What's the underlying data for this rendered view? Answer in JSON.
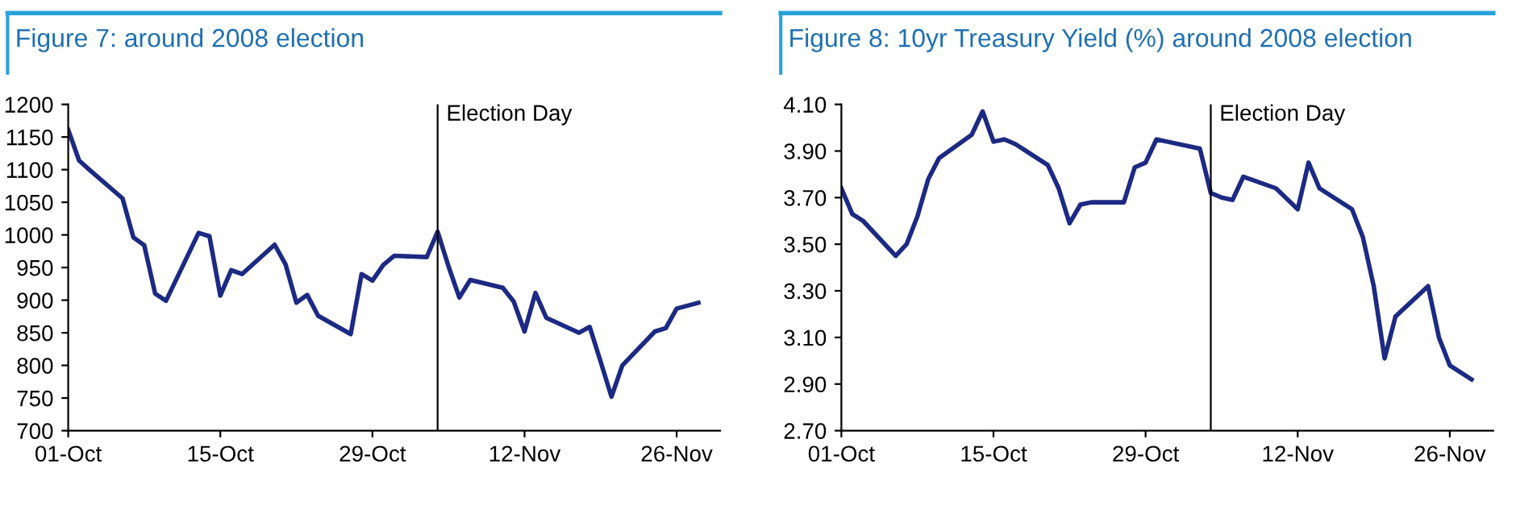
{
  "chart_data": [
    {
      "type": "line",
      "title": "Figure 7: around 2008 election",
      "x": [
        "2008-10-01",
        "2008-10-02",
        "2008-10-03",
        "2008-10-06",
        "2008-10-07",
        "2008-10-08",
        "2008-10-09",
        "2008-10-10",
        "2008-10-13",
        "2008-10-14",
        "2008-10-15",
        "2008-10-16",
        "2008-10-17",
        "2008-10-20",
        "2008-10-21",
        "2008-10-22",
        "2008-10-23",
        "2008-10-24",
        "2008-10-27",
        "2008-10-28",
        "2008-10-29",
        "2008-10-30",
        "2008-10-31",
        "2008-11-03",
        "2008-11-04",
        "2008-11-05",
        "2008-11-06",
        "2008-11-07",
        "2008-11-10",
        "2008-11-11",
        "2008-11-12",
        "2008-11-13",
        "2008-11-14",
        "2008-11-17",
        "2008-11-18",
        "2008-11-19",
        "2008-11-20",
        "2008-11-21",
        "2008-11-24",
        "2008-11-25",
        "2008-11-26",
        "2008-11-28"
      ],
      "series": [
        {
          "color": "#1c2a83",
          "values": [
            1161,
            1114,
            1099,
            1056,
            996,
            984,
            910,
            899,
            1003,
            998,
            907,
            946,
            940,
            985,
            955,
            896,
            908,
            876,
            848,
            940,
            930,
            954,
            968,
            966,
            1005,
            952,
            904,
            931,
            919,
            898,
            852,
            911,
            873,
            850,
            859,
            806,
            752,
            800,
            852,
            857,
            887,
            896
          ]
        }
      ],
      "xlim": [
        "2008-10-01",
        "2008-11-30"
      ],
      "xticks": [
        {
          "value": "2008-10-01",
          "label": "01-Oct"
        },
        {
          "value": "2008-10-15",
          "label": "15-Oct"
        },
        {
          "value": "2008-10-29",
          "label": "29-Oct"
        },
        {
          "value": "2008-11-12",
          "label": "12-Nov"
        },
        {
          "value": "2008-11-26",
          "label": "26-Nov"
        }
      ],
      "ylim": [
        700,
        1200
      ],
      "yticks": [
        700,
        750,
        800,
        850,
        900,
        950,
        1000,
        1050,
        1100,
        1150,
        1200
      ],
      "ref_lines": [
        {
          "axis": "x",
          "value": "2008-11-04",
          "label": "Election Day",
          "color": "#000000"
        }
      ],
      "grid": false,
      "legend": false
    },
    {
      "type": "line",
      "title": "Figure 8: 10yr Treasury Yield (%) around 2008 election",
      "x": [
        "2008-10-01",
        "2008-10-02",
        "2008-10-03",
        "2008-10-06",
        "2008-10-07",
        "2008-10-08",
        "2008-10-09",
        "2008-10-10",
        "2008-10-13",
        "2008-10-14",
        "2008-10-15",
        "2008-10-16",
        "2008-10-17",
        "2008-10-20",
        "2008-10-21",
        "2008-10-22",
        "2008-10-23",
        "2008-10-24",
        "2008-10-27",
        "2008-10-28",
        "2008-10-29",
        "2008-10-30",
        "2008-10-31",
        "2008-11-03",
        "2008-11-04",
        "2008-11-05",
        "2008-11-06",
        "2008-11-07",
        "2008-11-10",
        "2008-11-12",
        "2008-11-13",
        "2008-11-14",
        "2008-11-17",
        "2008-11-18",
        "2008-11-19",
        "2008-11-20",
        "2008-11-21",
        "2008-11-24",
        "2008-11-25",
        "2008-11-26",
        "2008-11-28"
      ],
      "series": [
        {
          "color": "#1c2a83",
          "values": [
            3.74,
            3.63,
            3.6,
            3.45,
            3.5,
            3.62,
            3.78,
            3.87,
            3.97,
            4.07,
            3.94,
            3.95,
            3.93,
            3.84,
            3.74,
            3.59,
            3.67,
            3.68,
            3.68,
            3.83,
            3.85,
            3.95,
            3.94,
            3.91,
            3.72,
            3.7,
            3.69,
            3.79,
            3.74,
            3.65,
            3.85,
            3.74,
            3.65,
            3.53,
            3.32,
            3.01,
            3.19,
            3.32,
            3.1,
            2.98,
            2.92
          ]
        }
      ],
      "xlim": [
        "2008-10-01",
        "2008-11-30"
      ],
      "xticks": [
        {
          "value": "2008-10-01",
          "label": "01-Oct"
        },
        {
          "value": "2008-10-15",
          "label": "15-Oct"
        },
        {
          "value": "2008-10-29",
          "label": "29-Oct"
        },
        {
          "value": "2008-11-12",
          "label": "12-Nov"
        },
        {
          "value": "2008-11-26",
          "label": "26-Nov"
        }
      ],
      "ylim": [
        2.7,
        4.1
      ],
      "yticks": [
        {
          "value": 2.7,
          "label": "2.70"
        },
        {
          "value": 2.9,
          "label": "2.90"
        },
        {
          "value": 3.1,
          "label": "3.10"
        },
        {
          "value": 3.3,
          "label": "3.30"
        },
        {
          "value": 3.5,
          "label": "3.50"
        },
        {
          "value": 3.7,
          "label": "3.70"
        },
        {
          "value": 3.9,
          "label": "3.90"
        },
        {
          "value": 4.1,
          "label": "4.10"
        }
      ],
      "ref_lines": [
        {
          "axis": "x",
          "value": "2008-11-04",
          "label": "Election Day",
          "color": "#000000"
        }
      ],
      "grid": false,
      "legend": false
    }
  ]
}
